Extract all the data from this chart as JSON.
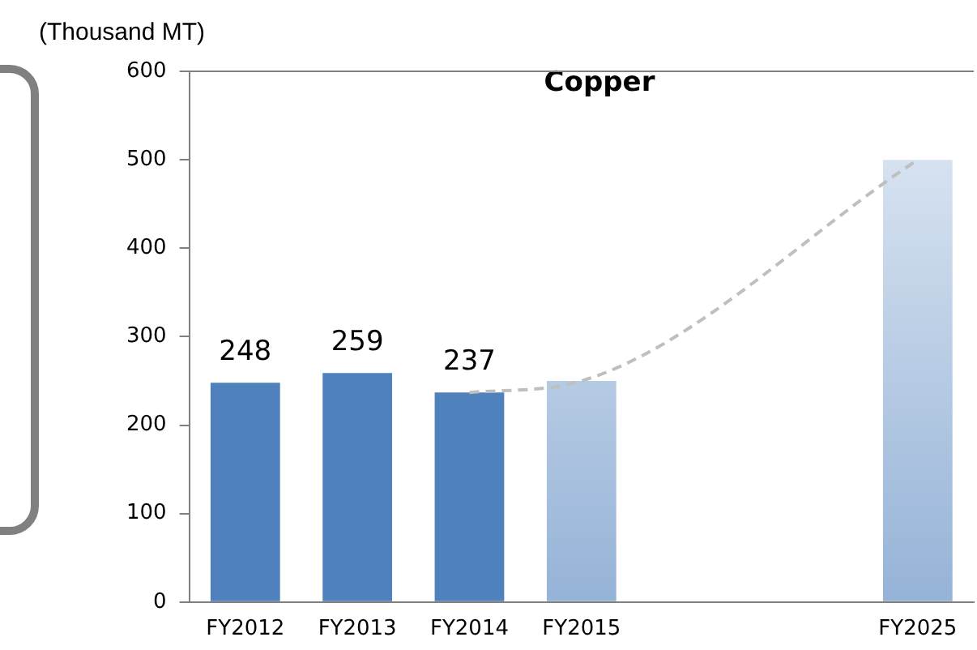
{
  "chart_data": {
    "type": "bar",
    "title": "Copper",
    "ylabel": "(Thousand MT)",
    "categories": [
      "FY2012",
      "FY2013",
      "FY2014",
      "FY2015",
      null,
      null,
      "FY2025"
    ],
    "series": [
      {
        "values": [
          248,
          259,
          237,
          250,
          null,
          null,
          500
        ],
        "colors": [
          "#4f81bd",
          "#4f81bd",
          "#4f81bd",
          "#b9cde5",
          "#4f81bd",
          "#4f81bd",
          "#b9cde5"
        ],
        "value_labels": [
          "248",
          "259",
          "237",
          null,
          null,
          null,
          null
        ]
      },
      {
        "type": "line",
        "values": [
          null,
          null,
          237,
          250,
          null,
          null,
          500
        ],
        "color": "#bfbfbf",
        "line_style": "dashed",
        "marker": "none"
      }
    ],
    "ylim": [
      0,
      600
    ],
    "yticks": [
      0,
      100,
      200,
      300,
      400,
      500,
      600
    ],
    "grid": false,
    "legend": false
  }
}
